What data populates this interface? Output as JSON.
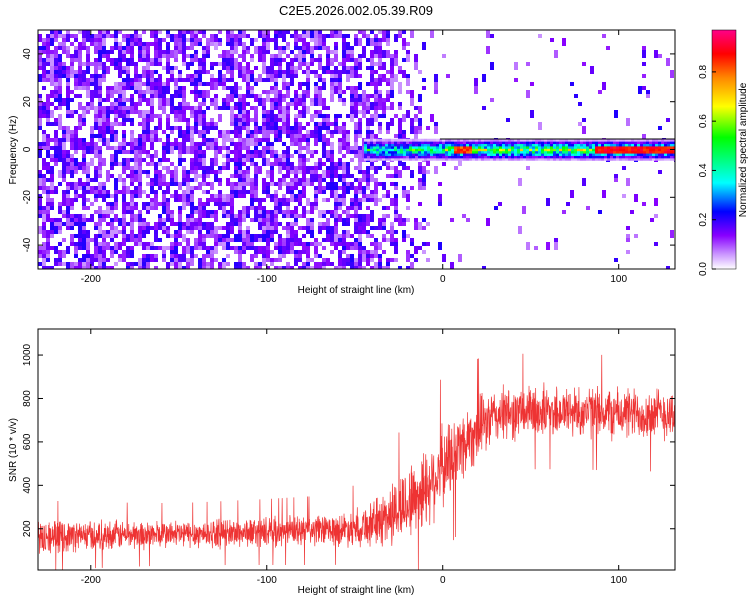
{
  "title": "C2E5.2026.002.05.39.R09",
  "chart_data": [
    {
      "type": "heatmap",
      "name": "spectrogram",
      "xlabel": "Height of straight line (km)",
      "ylabel": "Frequency (Hz)",
      "xlim": [
        -230,
        132
      ],
      "ylim": [
        -50,
        50
      ],
      "xticks": [
        -200,
        -100,
        0,
        100
      ],
      "yticks": [
        -40,
        -20,
        0,
        20,
        40
      ],
      "grid": false,
      "description_regions": [
        {
          "x_range": [
            -230,
            -40
          ],
          "level": "noise",
          "amplitude": [
            0.15,
            0.3
          ]
        },
        {
          "x_range": [
            -40,
            0
          ],
          "level": "noise-fading",
          "amplitude": [
            0.05,
            0.2
          ]
        },
        {
          "x_range": [
            -45,
            132
          ],
          "freq_center": 0,
          "freq_halfwidth": 3,
          "level": "signal",
          "amplitude": [
            0.3,
            0.97
          ]
        }
      ]
    },
    {
      "type": "colorbar",
      "label": "Normalized spectral amplitude",
      "range": [
        0.0,
        0.97
      ],
      "ticks": [
        0.0,
        0.2,
        0.4,
        0.6,
        0.8
      ],
      "colormap": [
        "#ffffff",
        "#8800ff",
        "#0000ff",
        "#00ffff",
        "#00ff00",
        "#ffff00",
        "#ff8800",
        "#ff0000",
        "#ff0088"
      ]
    },
    {
      "type": "line",
      "name": "snr",
      "xlabel": "Height of straight line (km)",
      "ylabel": "SNR (10 * v/v)",
      "xlim": [
        -230,
        132
      ],
      "ylim": [
        10,
        1120
      ],
      "xticks": [
        -200,
        -100,
        0,
        100
      ],
      "yticks": [
        200,
        400,
        600,
        800,
        1000
      ],
      "color": "#ee3333",
      "series": [
        {
          "name": "SNR",
          "x": [
            -230,
            -200,
            -150,
            -100,
            -60,
            -40,
            -30,
            -20,
            -10,
            0,
            10,
            20,
            30,
            50,
            80,
            100,
            132
          ],
          "mean": [
            160,
            170,
            175,
            185,
            195,
            220,
            260,
            320,
            390,
            480,
            580,
            660,
            720,
            740,
            740,
            730,
            730
          ],
          "spread": [
            90,
            80,
            75,
            80,
            85,
            120,
            170,
            200,
            220,
            220,
            200,
            170,
            150,
            140,
            140,
            140,
            140
          ]
        }
      ]
    }
  ]
}
